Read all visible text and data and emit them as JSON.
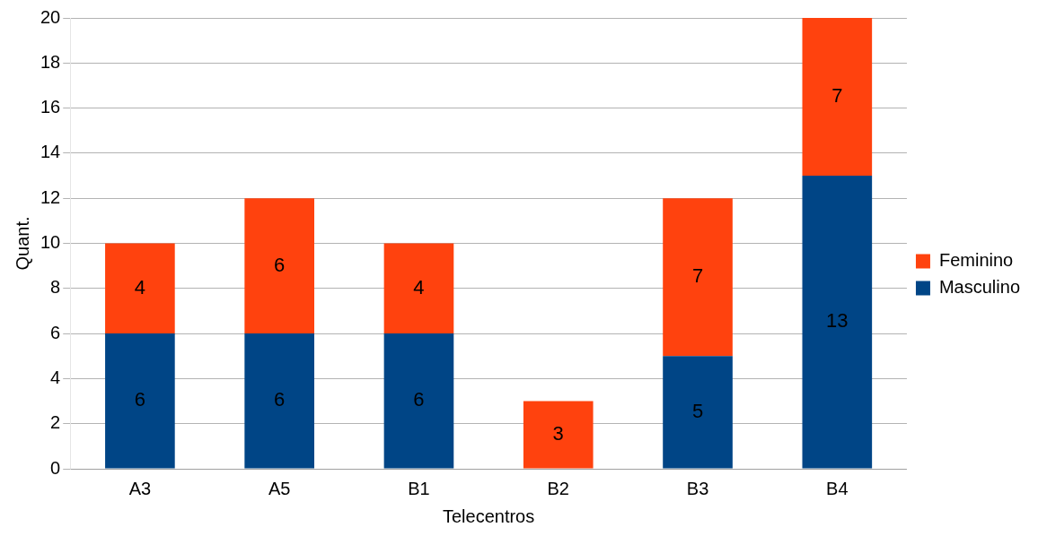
{
  "chart_data": {
    "type": "bar",
    "stacked": true,
    "xlabel": "Telecentros",
    "ylabel": "Quant.",
    "categories": [
      "A3",
      "A5",
      "B1",
      "B2",
      "B3",
      "B4"
    ],
    "series": [
      {
        "name": "Masculino",
        "color": "#004586",
        "values": [
          6,
          6,
          6,
          null,
          5,
          13
        ]
      },
      {
        "name": "Feminino",
        "color": "#ff420e",
        "values": [
          4,
          6,
          4,
          3,
          7,
          7
        ]
      }
    ],
    "ylim": [
      0,
      20
    ],
    "yticks": [
      0,
      2,
      4,
      6,
      8,
      10,
      12,
      14,
      16,
      18,
      20
    ],
    "grid": "y",
    "legend": "right",
    "data_labels": true
  }
}
